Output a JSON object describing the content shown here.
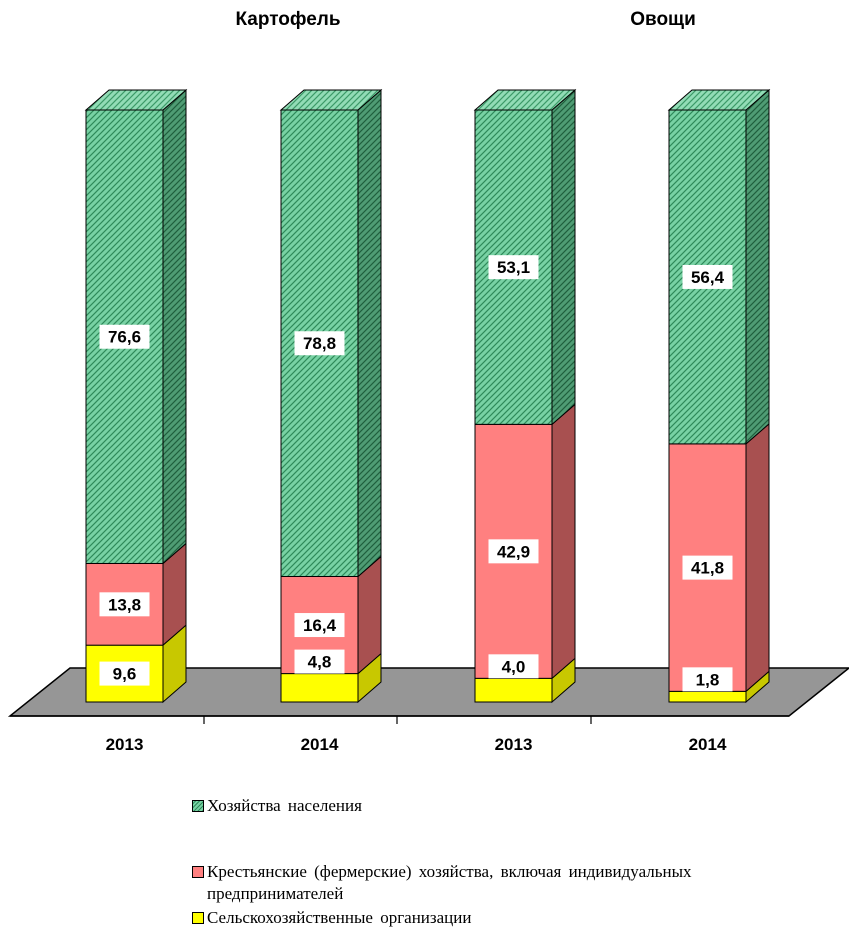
{
  "chart_data": {
    "type": "bar",
    "stacked": true,
    "three_d": true,
    "groups": [
      {
        "title": "Картофель",
        "categories": [
          "2013",
          "2014"
        ]
      },
      {
        "title": "Овощи",
        "categories": [
          "2013",
          "2014"
        ]
      }
    ],
    "categories": [
      "2013",
      "2014",
      "2013",
      "2014"
    ],
    "series": [
      {
        "name": "Сельскохозяйственные  организации",
        "values": [
          9.6,
          4.8,
          4.0,
          1.8
        ],
        "labels": [
          "9,6",
          "4,8",
          "4,0",
          "1,8"
        ],
        "color": "#ffff00"
      },
      {
        "name": "Крестьянские  (фермерские)  хозяйства,  включая индивидуальных  предпринимателей",
        "values": [
          13.8,
          16.4,
          42.9,
          41.8
        ],
        "labels": [
          "13,8",
          "16,4",
          "42,9",
          "41,8"
        ],
        "color": "#ff8080"
      },
      {
        "name": "Хозяйства  населения",
        "values": [
          76.6,
          78.8,
          53.1,
          56.4
        ],
        "labels": [
          "76,6",
          "78,8",
          "53,1",
          "56,4"
        ],
        "color": "#66cc99",
        "pattern": "diagonal-hatch"
      }
    ],
    "ylim": [
      0,
      100
    ],
    "grid": false,
    "legend_position": "bottom",
    "floor_color": "#969696"
  }
}
